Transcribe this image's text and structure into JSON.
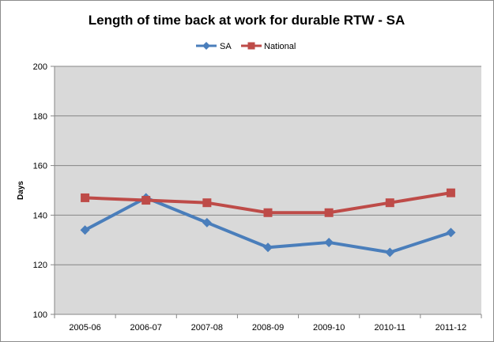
{
  "chart_data": {
    "type": "line",
    "title": "Length of time back at work for durable RTW -  SA",
    "xlabel": "",
    "ylabel": "Days",
    "categories": [
      "2005-06",
      "2006-07",
      "2007-08",
      "2008-09",
      "2009-10",
      "2010-11",
      "2011-12"
    ],
    "series": [
      {
        "name": "SA",
        "values": [
          134,
          147,
          137,
          127,
          129,
          125,
          133
        ],
        "color": "#4a7ebb",
        "marker": "diamond"
      },
      {
        "name": "National",
        "values": [
          147,
          146,
          145,
          141,
          141,
          145,
          149
        ],
        "color": "#be4b48",
        "marker": "square"
      }
    ],
    "ylim": [
      100,
      200
    ],
    "yticks": [
      100,
      120,
      140,
      160,
      180,
      200
    ],
    "grid": true,
    "legend_position": "top",
    "plot_background": "#d9d9d9"
  }
}
